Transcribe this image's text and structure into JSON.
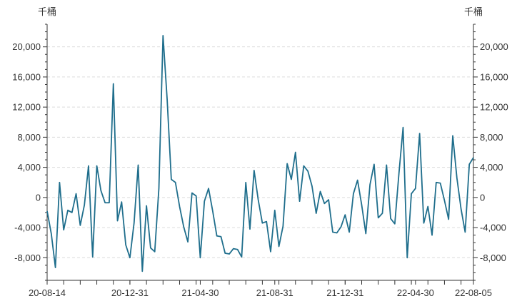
{
  "chart_data": {
    "type": "line",
    "y_unit_left": "千桶",
    "y_unit_right": "千桶",
    "ylim": [
      -11000,
      23000
    ],
    "yticks": [
      -8000,
      -4000,
      0,
      4000,
      8000,
      12000,
      16000,
      20000
    ],
    "ytick_labels": [
      "-8,000",
      "-4,000",
      "0",
      "4,000",
      "8,000",
      "12,000",
      "16,000",
      "20,000"
    ],
    "xtick_labels": [
      "20-08-14",
      "20-12-31",
      "21-04-30",
      "21-08-31",
      "21-12-31",
      "22-04-30",
      "22-08-05"
    ],
    "x_label_indices": [
      0,
      20,
      37,
      55,
      72,
      89,
      103
    ],
    "grid": true,
    "line_color": "#1f6e8c",
    "series": [
      {
        "values": [
          -1800,
          -4800,
          -9300,
          2000,
          -4300,
          -1700,
          -2000,
          500,
          -3700,
          -1000,
          4200,
          -7900,
          4200,
          900,
          -700,
          -700,
          15100,
          -3100,
          -600,
          -6300,
          -8000,
          -3400,
          4300,
          -9800,
          -1100,
          -6700,
          -7200,
          1200,
          21500,
          13000,
          2400,
          2000,
          -1200,
          -3900,
          -5900,
          600,
          200,
          -8000,
          -500,
          1200,
          -1800,
          -5100,
          -5200,
          -7400,
          -7500,
          -6800,
          -6900,
          -7900,
          2000,
          -4200,
          3600,
          -300,
          -3400,
          -3200,
          -7200,
          -1700,
          -6500,
          -3800,
          4500,
          2400,
          6000,
          -500,
          4200,
          3500,
          1500,
          -2100,
          800,
          -800,
          -300,
          -4600,
          -4700,
          -3900,
          -2300,
          -4600,
          500,
          2300,
          -1000,
          -4800,
          1700,
          4400,
          -2700,
          -2100,
          4300,
          -2800,
          -3500,
          3200,
          9300,
          -8000,
          500,
          1200,
          8500,
          -3400,
          -1200,
          -5000,
          2000,
          1900,
          -400,
          -2900,
          8200,
          2600,
          -1500,
          -4600,
          4400,
          5300
        ]
      }
    ]
  }
}
